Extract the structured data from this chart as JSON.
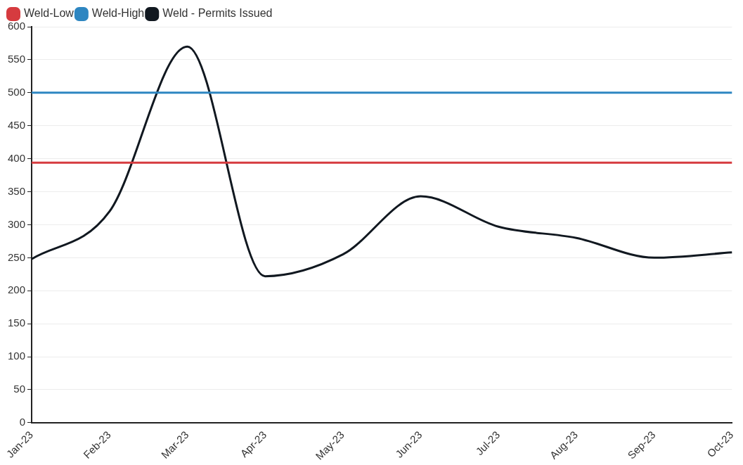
{
  "chart_data": {
    "type": "line",
    "categories": [
      "Jan-23",
      "Feb-23",
      "Mar-23",
      "Apr-23",
      "May-23",
      "Jun-23",
      "Jul-23",
      "Aug-23",
      "Sep-23",
      "Oct-23"
    ],
    "series": [
      {
        "name": "Weld-Low",
        "color": "#d63b3f",
        "values": [
          394,
          394,
          394,
          394,
          394,
          394,
          394,
          394,
          394,
          394
        ]
      },
      {
        "name": "Weld-High",
        "color": "#2e86c1",
        "values": [
          500,
          500,
          500,
          500,
          500,
          500,
          500,
          500,
          500,
          500
        ]
      },
      {
        "name": "Weld - Permits Issued",
        "color": "#111820",
        "values": [
          248,
          320,
          570,
          222,
          255,
          343,
          297,
          280,
          250,
          258
        ]
      }
    ],
    "ylim": [
      0,
      600
    ],
    "yticks": [
      0,
      50,
      100,
      150,
      200,
      250,
      300,
      350,
      400,
      450,
      500,
      550,
      600
    ],
    "grid": "y",
    "legend": "top left",
    "marker": "none",
    "line_style": "solid"
  }
}
